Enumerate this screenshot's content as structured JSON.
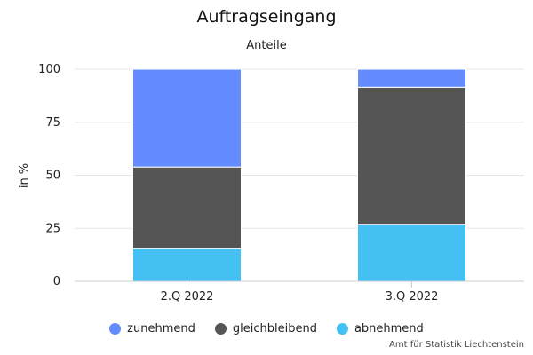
{
  "chart_data": {
    "type": "bar",
    "stacked": true,
    "title": "Auftragseingang",
    "subtitle": "Anteile",
    "xlabel": "",
    "ylabel": "in %",
    "ylim": [
      0,
      100
    ],
    "yticks": [
      0,
      25,
      50,
      75,
      100
    ],
    "grid": true,
    "legend_position": "bottom",
    "categories": [
      "2.Q 2022",
      "3.Q 2022"
    ],
    "series": [
      {
        "name": "abnehmend",
        "color": "#44c1f2",
        "values": [
          15.4,
          26.9
        ]
      },
      {
        "name": "gleichbleibend",
        "color": "#555555",
        "values": [
          38.5,
          64.6
        ]
      },
      {
        "name": "zunehmend",
        "color": "#648cff",
        "values": [
          46.1,
          8.5
        ]
      }
    ],
    "legend_order": [
      "zunehmend",
      "gleichbleibend",
      "abnehmend"
    ],
    "credit": "Amt für Statistik Liechtenstein"
  }
}
